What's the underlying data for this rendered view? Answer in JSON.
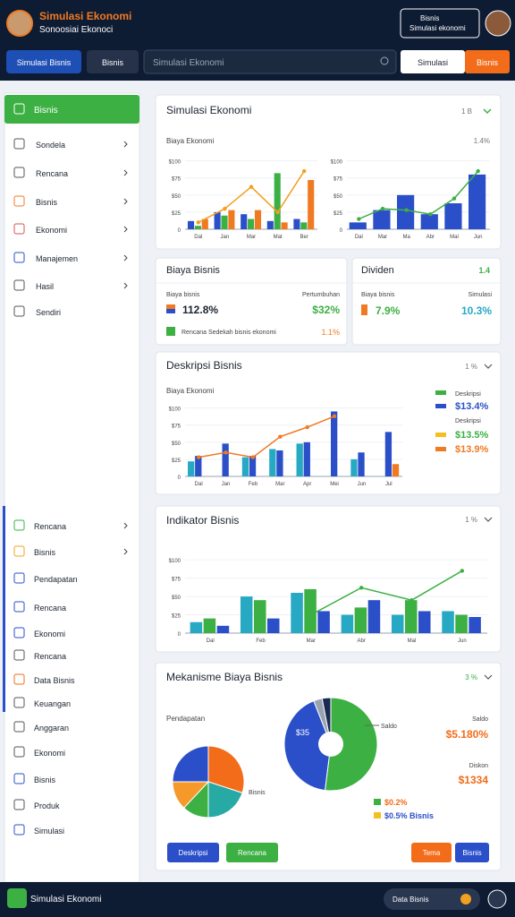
{
  "header": {
    "title": "Simulasi Ekonomi",
    "subtitle": "Sonoosiai Ekonoci",
    "account_title": "Bisnis",
    "account_subtitle": "Simulasi ekonomi"
  },
  "toolbar": {
    "buttons": [
      "Simulasi Bisnis",
      "Bisnis"
    ],
    "search": "Simulasi Ekonomi",
    "actions": [
      "Simulasi",
      "Bisnis"
    ]
  },
  "sidebar": {
    "active": "Bisnis",
    "items": [
      "Sondela",
      "Rencana",
      "Bisnis",
      "Ekonomi",
      "Manajemen",
      "Hasil",
      "Sendiri"
    ],
    "lower_items": [
      "Rencana",
      "Bisnis",
      "Pendapatan",
      "Rencana",
      "Ekonomi",
      "Rencana",
      "Data Bisnis",
      "Keuangan",
      "Anggaran",
      "Ekonomi",
      "Bisnis",
      "Produk",
      "Simulasi"
    ]
  },
  "panels": [
    {
      "title": "Simulasi Ekonomi",
      "badge": "1 B",
      "charts": [
        {
          "type": "bar",
          "subtitle": "Biaya Ekonomi",
          "categories": [
            "Dal",
            "Jan",
            "Mar",
            "Mat",
            "Ber"
          ],
          "ylim": [
            0,
            110
          ],
          "yticks": [
            0,
            {
              "value": 25,
              "label": "$25"
            },
            {
              "value": 50,
              "label": "$50"
            },
            {
              "value": 75,
              "label": "$75"
            },
            {
              "value": 100,
              "label": "$100"
            }
          ],
          "series": [
            {
              "type": "bar",
              "color": "#2a4fc9",
              "values": [
                12,
                25,
                22,
                12,
                15
              ]
            },
            {
              "type": "bar",
              "color": "#3cb043",
              "values": [
                5,
                20,
                15,
                82,
                10
              ]
            },
            {
              "type": "bar",
              "color": "#f07a22",
              "values": [
                15,
                28,
                28,
                10,
                72
              ]
            },
            {
              "type": "line",
              "color": "#f2a020",
              "values": [
                10,
                30,
                62,
                25,
                85
              ]
            }
          ]
        },
        {
          "type": "bar",
          "subtitle": "1.4%",
          "categories": [
            "Dal",
            "Mar",
            "Ma",
            "Abr",
            "Mal",
            "Jun"
          ],
          "ylim": [
            0,
            110
          ],
          "yticks": [
            0,
            {
              "value": 25,
              "label": "$25"
            },
            {
              "value": 50,
              "label": "$50"
            },
            {
              "value": 75,
              "label": "$75"
            },
            {
              "value": 100,
              "label": "$100"
            }
          ],
          "series": [
            {
              "type": "bar",
              "color": "#2a4fc9",
              "values": [
                10,
                28,
                50,
                22,
                38,
                80
              ]
            },
            {
              "type": "line",
              "color": "#3cb043",
              "values": [
                15,
                30,
                28,
                22,
                45,
                85
              ]
            }
          ]
        }
      ]
    },
    {
      "title": "Biaya Bisnis",
      "stats": [
        {
          "label": "Biaya bisnis",
          "value": "112.8%",
          "right_label": "Pertumbuhan",
          "right_value": "$32%"
        },
        {
          "label": "Rencana Sedekah bisnis ekonomi",
          "right_value": "1.1%"
        }
      ]
    },
    {
      "title": "Dividen",
      "badge": "1.4",
      "stats": [
        {
          "label": "Biaya bisnis",
          "value": "7.9%",
          "right_label": "Simulasi",
          "right_value": "10.3%"
        }
      ]
    },
    {
      "title": "Deskripsi Bisnis",
      "badge": "1 %",
      "chart": {
        "type": "bar",
        "subtitle": "Biaya Ekonomi",
        "categories": [
          "Dal",
          "Jan",
          "Feb",
          "Mar",
          "Apr",
          "Mei",
          "Jun",
          "Jul"
        ],
        "ylim": [
          0,
          110
        ],
        "yticks": [
          0,
          {
            "value": 25,
            "label": "$25"
          },
          {
            "value": 50,
            "label": "$50"
          },
          {
            "value": 75,
            "label": "$75"
          },
          {
            "value": 100,
            "label": "$100"
          }
        ],
        "series": [
          {
            "type": "bar",
            "color": "#27a9c4",
            "values": [
              22,
              null,
              28,
              40,
              48,
              null,
              25,
              null
            ]
          },
          {
            "type": "bar",
            "color": "#2a4fc9",
            "values": [
              30,
              48,
              30,
              38,
              50,
              95,
              35,
              65
            ]
          },
          {
            "type": "bar",
            "color": "#f07a22",
            "values": [
              null,
              null,
              null,
              null,
              null,
              null,
              null,
              18
            ]
          },
          {
            "type": "line",
            "color": "#f07a22",
            "values": [
              28,
              35,
              28,
              58,
              72,
              88,
              null,
              null
            ]
          }
        ]
      },
      "legend": [
        {
          "label": "Deskripsi",
          "color": "#3cb043"
        },
        {
          "label": "$13.4%",
          "color": "#2a4fc9"
        },
        {
          "label": "Deskripsi",
          "color": "#ffffff"
        },
        {
          "label": "$13.5%",
          "color": "#f2c020"
        },
        {
          "label": "$13.9%",
          "color": "#f07a22"
        }
      ]
    },
    {
      "title": "Indikator Bisnis",
      "badge": "1 %",
      "chart": {
        "type": "bar",
        "categories": [
          "Dal",
          "Feb",
          "Mar",
          "Abr",
          "Mal",
          "Jun"
        ],
        "ylim": [
          0,
          110
        ],
        "yticks": [
          0,
          {
            "value": 25,
            "label": "$25"
          },
          {
            "value": 50,
            "label": "$50"
          },
          {
            "value": 75,
            "label": "$75"
          },
          {
            "value": 100,
            "label": "$100"
          }
        ],
        "series": [
          {
            "type": "bar",
            "color": "#27a9c4",
            "values": [
              15,
              50,
              55,
              25,
              25,
              30
            ]
          },
          {
            "type": "bar",
            "color": "#3cb043",
            "values": [
              20,
              45,
              60,
              35,
              45,
              25
            ]
          },
          {
            "type": "bar",
            "color": "#2a4fc9",
            "values": [
              10,
              20,
              30,
              45,
              30,
              22
            ]
          },
          {
            "type": "line",
            "color": "#3cb043",
            "values": [
              null,
              null,
              25,
              62,
              45,
              85
            ]
          }
        ]
      }
    },
    {
      "title": "Mekanisme Biaya Bisnis",
      "badge": "3 %",
      "pies": [
        {
          "type": "pie",
          "title": "Pendapatan",
          "label": "Bisnis",
          "values": [
            30,
            20,
            12,
            13,
            25
          ],
          "colors": [
            "#f26c1a",
            "#27a9a4",
            "#3cb043",
            "#f59a2a",
            "#2a4fc9"
          ]
        },
        {
          "type": "pie",
          "title": "Saldo",
          "label": "$35",
          "values": [
            52,
            42,
            3,
            3
          ],
          "colors": [
            "#3cb043",
            "#2a4fc9",
            "#9aa3b0",
            "#1b2a55"
          ]
        }
      ],
      "side": [
        {
          "label": "Saldo",
          "value": "$5.180%"
        },
        {
          "label": "Diskon",
          "value": "$1334"
        }
      ],
      "legend": [
        {
          "label": "$0.2%",
          "color": "#3cb043"
        },
        {
          "label": "$0.5% Bisnis",
          "color": "#f2c020"
        }
      ],
      "buttons": [
        {
          "label": "Deskripsi",
          "color": "#2a4fc9"
        },
        {
          "label": "Rencana",
          "color": "#3cb043"
        },
        {
          "label": "Tema",
          "color": "#f26c1a"
        },
        {
          "label": "Bisnis",
          "color": "#2a4fc9"
        }
      ]
    }
  ],
  "footer": {
    "title": "Simulasi Ekonomi",
    "pill": "Data Bisnis"
  }
}
